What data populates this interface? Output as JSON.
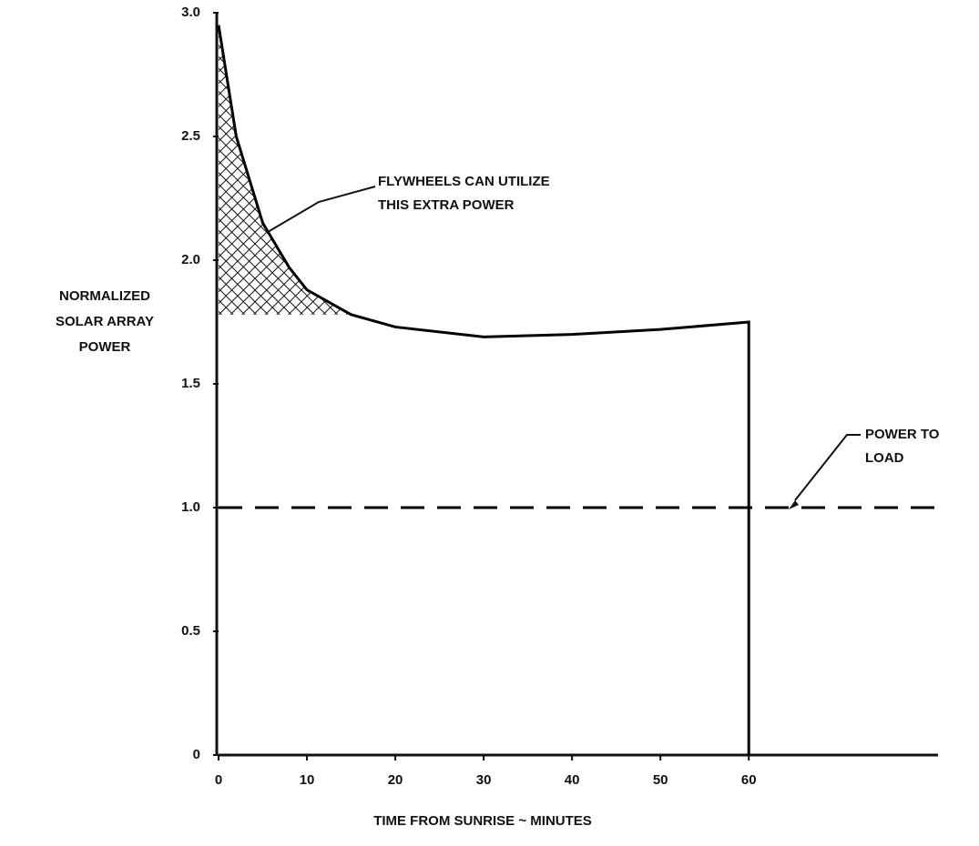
{
  "chart_data": {
    "type": "line",
    "y_label": [
      "NORMALIZED",
      "SOLAR ARRAY",
      "POWER"
    ],
    "x_label": "TIME FROM SUNRISE ~ MINUTES",
    "annotations": [
      {
        "lines": [
          "FLYWHEELS CAN UTILIZE",
          "THIS EXTRA POWER"
        ]
      },
      {
        "lines": [
          "POWER TO",
          "LOAD"
        ]
      }
    ],
    "series": [
      {
        "color": "#000000",
        "style": "solid",
        "hatch": true,
        "x": [
          0,
          2,
          5,
          8,
          10,
          15,
          20,
          30,
          40,
          50,
          60,
          60
        ],
        "values": [
          2.95,
          2.5,
          2.15,
          1.97,
          1.88,
          1.78,
          1.73,
          1.69,
          1.7,
          1.72,
          1.75,
          0
        ]
      },
      {
        "color": "#000000",
        "style": "dashed",
        "x": [
          0,
          81
        ],
        "values": [
          1,
          1
        ]
      }
    ],
    "xlim": [
      0,
      81
    ],
    "ylim": [
      0,
      3
    ],
    "xticks": [
      0,
      10,
      20,
      30,
      40,
      50,
      60
    ],
    "yticks": [
      0,
      0.5,
      {
        "value": 1,
        "label": "1.0"
      },
      1.5,
      {
        "value": 2,
        "label": "2.0"
      },
      2.5,
      {
        "value": 3,
        "label": "3.0"
      }
    ],
    "grid": false
  }
}
